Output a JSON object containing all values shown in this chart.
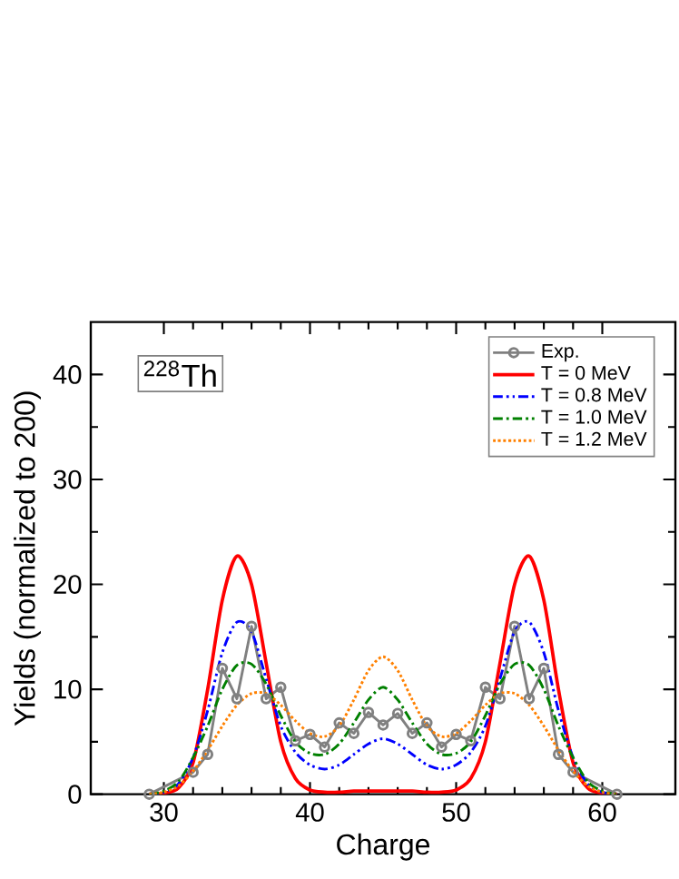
{
  "chart_data": {
    "type": "line",
    "xlabel": "Charge",
    "ylabel": "Yields (normalized to 200)",
    "annotations": [
      "$^{228}$Th"
    ],
    "xlim": [
      25,
      65
    ],
    "ylim": [
      0,
      45
    ],
    "xticks": [
      30,
      40,
      50,
      60
    ],
    "yticks": [
      0,
      10,
      20,
      30,
      40
    ],
    "legend": "top right",
    "grid": false,
    "series": [
      {
        "name": "Exp.",
        "color": "#808080",
        "marker": "circle",
        "line_style": "solid",
        "x": [
          29,
          32,
          33,
          34,
          35,
          36,
          37,
          38,
          39,
          40,
          41,
          42,
          43,
          44,
          45,
          46,
          47,
          48,
          49,
          50,
          51,
          52,
          53,
          54,
          55,
          56,
          57,
          58,
          61
        ],
        "values": [
          0,
          2.1,
          3.8,
          12.0,
          9.1,
          16.0,
          9.1,
          10.2,
          5.1,
          5.7,
          4.5,
          6.8,
          5.8,
          7.8,
          6.6,
          7.7,
          5.8,
          6.8,
          4.5,
          5.7,
          5.1,
          10.2,
          9.1,
          16.0,
          9.1,
          12.0,
          3.8,
          2.1,
          0
        ]
      },
      {
        "name": "T = 0 MeV",
        "color": "#ff0000",
        "marker": "none",
        "line_style": "solid",
        "x": [
          29,
          30,
          31,
          32,
          33,
          34,
          35,
          36,
          37,
          38,
          39,
          40,
          41,
          42,
          43,
          44,
          45,
          46,
          47,
          48,
          49,
          50,
          51,
          52,
          53,
          54,
          55,
          56,
          57,
          58,
          59,
          60,
          61
        ],
        "values": [
          0,
          0.1,
          0.6,
          3,
          10,
          18.5,
          22.7,
          20,
          12.5,
          5,
          1.5,
          0.4,
          0.2,
          0.2,
          0.3,
          0.3,
          0.3,
          0.3,
          0.3,
          0.2,
          0.2,
          0.4,
          1.5,
          5,
          12.5,
          20,
          22.7,
          18.5,
          10,
          3,
          0.6,
          0.1,
          0
        ]
      },
      {
        "name": "T = 0.8 MeV",
        "color": "#0000ff",
        "marker": "none",
        "line_style": "dashdotdotted",
        "x": [
          29,
          30,
          31,
          32,
          33,
          34,
          35,
          36,
          37,
          38,
          39,
          40,
          41,
          42,
          43,
          44,
          45,
          46,
          47,
          48,
          49,
          50,
          51,
          52,
          53,
          54,
          55,
          56,
          57,
          58,
          59,
          60,
          61
        ],
        "values": [
          0,
          0.2,
          1,
          3.5,
          8,
          13.5,
          16.4,
          15.5,
          11,
          6.5,
          4,
          2.8,
          2.4,
          2.8,
          3.8,
          4.8,
          5.3,
          4.8,
          3.8,
          2.8,
          2.4,
          2.8,
          4,
          6.5,
          11,
          15.5,
          16.4,
          13.5,
          8,
          3.5,
          1,
          0.2,
          0
        ]
      },
      {
        "name": "T = 1.0 MeV",
        "color": "#008000",
        "marker": "none",
        "line_style": "dashdotted",
        "x": [
          29,
          30,
          31,
          32,
          33,
          34,
          35,
          36,
          37,
          38,
          39,
          40,
          41,
          42,
          43,
          44,
          45,
          46,
          47,
          48,
          49,
          50,
          51,
          52,
          53,
          54,
          55,
          56,
          57,
          58,
          59,
          60,
          61
        ],
        "values": [
          0,
          0.3,
          1.2,
          3.5,
          6.5,
          10,
          12.3,
          12.4,
          10.5,
          7.5,
          5,
          3.9,
          3.8,
          4.8,
          6.8,
          9,
          10.2,
          9,
          6.8,
          4.8,
          3.8,
          3.9,
          5,
          7.5,
          10.5,
          12.4,
          12.3,
          10,
          6.5,
          3.5,
          1.2,
          0.3,
          0
        ]
      },
      {
        "name": "T = 1.2 MeV",
        "color": "#ff8000",
        "marker": "none",
        "line_style": "dotted",
        "x": [
          29,
          30,
          31,
          32,
          33,
          34,
          35,
          36,
          37,
          38,
          39,
          40,
          41,
          42,
          43,
          44,
          45,
          46,
          47,
          48,
          49,
          50,
          51,
          52,
          53,
          54,
          55,
          56,
          57,
          58,
          59,
          60,
          61
        ],
        "values": [
          0,
          0.2,
          0.8,
          2.2,
          4.2,
          6.5,
          8.5,
          9.6,
          9.6,
          8.5,
          7,
          5.8,
          5.5,
          6.5,
          9,
          11.8,
          13.1,
          11.8,
          9,
          6.5,
          5.5,
          5.8,
          7,
          8.5,
          9.6,
          9.6,
          8.5,
          6.5,
          4.2,
          2.2,
          0.8,
          0.2,
          0
        ]
      }
    ]
  }
}
